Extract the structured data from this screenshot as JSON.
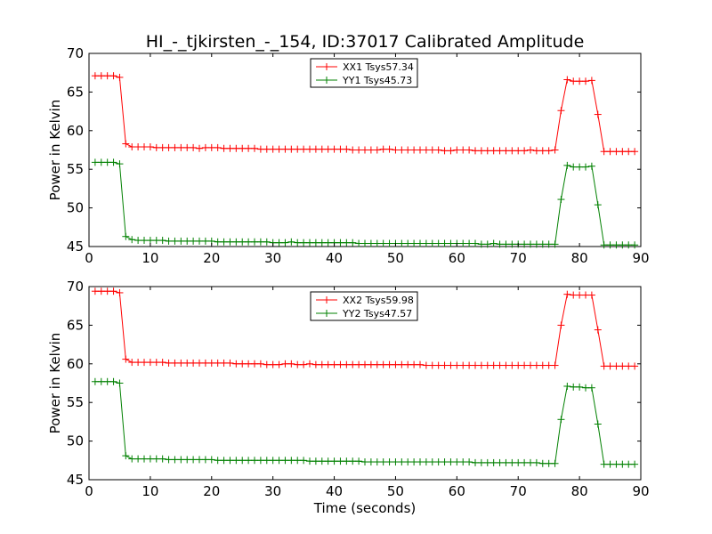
{
  "title": "HI_-_tjkirsten_-_154, ID:37017 Calibrated Amplitude",
  "chart_data": [
    {
      "type": "line",
      "ylabel": "Power in Kelvin",
      "xlabel": "",
      "xlim": [
        0,
        90
      ],
      "ylim": [
        45,
        70
      ],
      "xticks": [
        0,
        10,
        20,
        30,
        40,
        50,
        60,
        70,
        80,
        90
      ],
      "yticks": [
        45,
        50,
        55,
        60,
        65,
        70
      ],
      "legend_position": "top-center",
      "series": [
        {
          "name": "XX1 Tsys57.34",
          "color": "#ff0000",
          "x": [
            1,
            2,
            3,
            4,
            5,
            6,
            7,
            8,
            9,
            10,
            11,
            12,
            13,
            14,
            15,
            16,
            17,
            18,
            19,
            20,
            21,
            22,
            23,
            24,
            25,
            26,
            27,
            28,
            29,
            30,
            31,
            32,
            33,
            34,
            35,
            36,
            37,
            38,
            39,
            40,
            41,
            42,
            43,
            44,
            45,
            46,
            47,
            48,
            49,
            50,
            51,
            52,
            53,
            54,
            55,
            56,
            57,
            58,
            59,
            60,
            61,
            62,
            63,
            64,
            65,
            66,
            67,
            68,
            69,
            70,
            71,
            72,
            73,
            74,
            75,
            76,
            77,
            78,
            79,
            80,
            81,
            82,
            83,
            84,
            85,
            86,
            87,
            88,
            89
          ],
          "y": [
            67.1,
            67.1,
            67.1,
            67.1,
            66.9,
            58.3,
            57.9,
            57.9,
            57.9,
            57.9,
            57.8,
            57.8,
            57.8,
            57.8,
            57.8,
            57.8,
            57.8,
            57.7,
            57.8,
            57.8,
            57.8,
            57.7,
            57.7,
            57.7,
            57.7,
            57.7,
            57.7,
            57.6,
            57.6,
            57.6,
            57.6,
            57.6,
            57.6,
            57.6,
            57.6,
            57.6,
            57.6,
            57.6,
            57.6,
            57.6,
            57.6,
            57.6,
            57.5,
            57.5,
            57.5,
            57.5,
            57.5,
            57.6,
            57.6,
            57.5,
            57.5,
            57.5,
            57.5,
            57.5,
            57.5,
            57.5,
            57.5,
            57.4,
            57.4,
            57.5,
            57.5,
            57.5,
            57.4,
            57.4,
            57.4,
            57.4,
            57.4,
            57.4,
            57.4,
            57.4,
            57.4,
            57.5,
            57.4,
            57.4,
            57.4,
            57.5,
            62.6,
            66.6,
            66.4,
            66.4,
            66.4,
            66.5,
            62.1,
            57.3,
            57.3,
            57.3,
            57.3,
            57.3,
            57.3
          ]
        },
        {
          "name": "YY1 Tsys45.73",
          "color": "#008000",
          "x": [
            1,
            2,
            3,
            4,
            5,
            6,
            7,
            8,
            9,
            10,
            11,
            12,
            13,
            14,
            15,
            16,
            17,
            18,
            19,
            20,
            21,
            22,
            23,
            24,
            25,
            26,
            27,
            28,
            29,
            30,
            31,
            32,
            33,
            34,
            35,
            36,
            37,
            38,
            39,
            40,
            41,
            42,
            43,
            44,
            45,
            46,
            47,
            48,
            49,
            50,
            51,
            52,
            53,
            54,
            55,
            56,
            57,
            58,
            59,
            60,
            61,
            62,
            63,
            64,
            65,
            66,
            67,
            68,
            69,
            70,
            71,
            72,
            73,
            74,
            75,
            76,
            77,
            78,
            79,
            80,
            81,
            82,
            83,
            84,
            85,
            86,
            87,
            88,
            89
          ],
          "y": [
            55.9,
            55.9,
            55.9,
            55.9,
            55.7,
            46.3,
            45.9,
            45.8,
            45.8,
            45.8,
            45.8,
            45.8,
            45.7,
            45.7,
            45.7,
            45.7,
            45.7,
            45.7,
            45.7,
            45.7,
            45.6,
            45.6,
            45.6,
            45.6,
            45.6,
            45.6,
            45.6,
            45.6,
            45.6,
            45.5,
            45.5,
            45.5,
            45.6,
            45.5,
            45.5,
            45.5,
            45.5,
            45.5,
            45.5,
            45.5,
            45.5,
            45.5,
            45.5,
            45.4,
            45.4,
            45.4,
            45.4,
            45.4,
            45.4,
            45.4,
            45.4,
            45.4,
            45.4,
            45.4,
            45.4,
            45.4,
            45.4,
            45.4,
            45.4,
            45.4,
            45.4,
            45.4,
            45.4,
            45.3,
            45.3,
            45.4,
            45.3,
            45.3,
            45.3,
            45.3,
            45.3,
            45.3,
            45.3,
            45.3,
            45.3,
            45.3,
            51.1,
            55.5,
            55.3,
            55.3,
            55.3,
            55.4,
            50.4,
            45.2,
            45.2,
            45.2,
            45.2,
            45.2,
            45.2
          ]
        }
      ]
    },
    {
      "type": "line",
      "ylabel": "Power in Kelvin",
      "xlabel": "Time (seconds)",
      "xlim": [
        0,
        90
      ],
      "ylim": [
        45,
        70
      ],
      "xticks": [
        0,
        10,
        20,
        30,
        40,
        50,
        60,
        70,
        80,
        90
      ],
      "yticks": [
        45,
        50,
        55,
        60,
        65,
        70
      ],
      "legend_position": "top-center",
      "series": [
        {
          "name": "XX2 Tsys59.98",
          "color": "#ff0000",
          "x": [
            1,
            2,
            3,
            4,
            5,
            6,
            7,
            8,
            9,
            10,
            11,
            12,
            13,
            14,
            15,
            16,
            17,
            18,
            19,
            20,
            21,
            22,
            23,
            24,
            25,
            26,
            27,
            28,
            29,
            30,
            31,
            32,
            33,
            34,
            35,
            36,
            37,
            38,
            39,
            40,
            41,
            42,
            43,
            44,
            45,
            46,
            47,
            48,
            49,
            50,
            51,
            52,
            53,
            54,
            55,
            56,
            57,
            58,
            59,
            60,
            61,
            62,
            63,
            64,
            65,
            66,
            67,
            68,
            69,
            70,
            71,
            72,
            73,
            74,
            75,
            76,
            77,
            78,
            79,
            80,
            81,
            82,
            83,
            84,
            85,
            86,
            87,
            88,
            89
          ],
          "y": [
            69.4,
            69.4,
            69.4,
            69.4,
            69.2,
            60.6,
            60.2,
            60.2,
            60.2,
            60.2,
            60.2,
            60.2,
            60.1,
            60.1,
            60.1,
            60.1,
            60.1,
            60.1,
            60.1,
            60.1,
            60.1,
            60.1,
            60.1,
            60.0,
            60.0,
            60.0,
            60.0,
            60.0,
            59.9,
            59.9,
            59.9,
            60.0,
            60.0,
            59.9,
            59.9,
            60.0,
            59.9,
            59.9,
            59.9,
            59.9,
            59.9,
            59.9,
            59.9,
            59.9,
            59.9,
            59.9,
            59.9,
            59.9,
            59.9,
            59.9,
            59.9,
            59.9,
            59.9,
            59.9,
            59.8,
            59.8,
            59.8,
            59.8,
            59.8,
            59.8,
            59.8,
            59.8,
            59.8,
            59.8,
            59.8,
            59.8,
            59.8,
            59.8,
            59.8,
            59.8,
            59.8,
            59.8,
            59.8,
            59.8,
            59.8,
            59.8,
            65.0,
            69.0,
            68.9,
            68.9,
            68.9,
            68.9,
            64.4,
            59.7,
            59.7,
            59.7,
            59.7,
            59.7,
            59.7
          ]
        },
        {
          "name": "YY2 Tsys47.57",
          "color": "#008000",
          "x": [
            1,
            2,
            3,
            4,
            5,
            6,
            7,
            8,
            9,
            10,
            11,
            12,
            13,
            14,
            15,
            16,
            17,
            18,
            19,
            20,
            21,
            22,
            23,
            24,
            25,
            26,
            27,
            28,
            29,
            30,
            31,
            32,
            33,
            34,
            35,
            36,
            37,
            38,
            39,
            40,
            41,
            42,
            43,
            44,
            45,
            46,
            47,
            48,
            49,
            50,
            51,
            52,
            53,
            54,
            55,
            56,
            57,
            58,
            59,
            60,
            61,
            62,
            63,
            64,
            65,
            66,
            67,
            68,
            69,
            70,
            71,
            72,
            73,
            74,
            75,
            76,
            77,
            78,
            79,
            80,
            81,
            82,
            83,
            84,
            85,
            86,
            87,
            88,
            89
          ],
          "y": [
            57.7,
            57.7,
            57.7,
            57.7,
            57.5,
            48.1,
            47.7,
            47.7,
            47.7,
            47.7,
            47.7,
            47.7,
            47.6,
            47.6,
            47.6,
            47.6,
            47.6,
            47.6,
            47.6,
            47.6,
            47.5,
            47.5,
            47.5,
            47.5,
            47.5,
            47.5,
            47.5,
            47.5,
            47.5,
            47.5,
            47.5,
            47.5,
            47.5,
            47.5,
            47.5,
            47.4,
            47.4,
            47.4,
            47.4,
            47.4,
            47.4,
            47.4,
            47.4,
            47.4,
            47.3,
            47.3,
            47.3,
            47.3,
            47.3,
            47.3,
            47.3,
            47.3,
            47.3,
            47.3,
            47.3,
            47.3,
            47.3,
            47.3,
            47.3,
            47.3,
            47.3,
            47.3,
            47.2,
            47.2,
            47.2,
            47.2,
            47.2,
            47.2,
            47.2,
            47.2,
            47.2,
            47.2,
            47.2,
            47.1,
            47.1,
            47.1,
            52.8,
            57.1,
            57.0,
            57.0,
            56.9,
            56.9,
            52.2,
            47.0,
            47.0,
            47.0,
            47.0,
            47.0,
            47.0
          ]
        }
      ]
    }
  ]
}
